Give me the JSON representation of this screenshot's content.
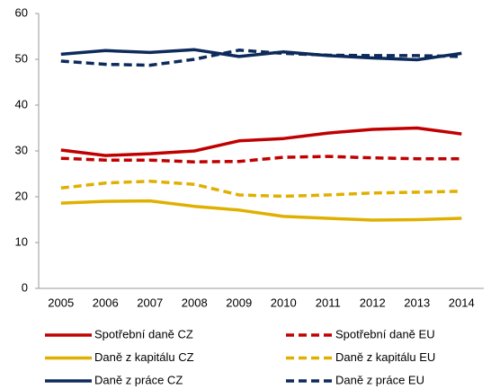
{
  "chart_data": {
    "type": "line",
    "categories": [
      "2005",
      "2006",
      "2007",
      "2008",
      "2009",
      "2010",
      "2011",
      "2012",
      "2013",
      "2014"
    ],
    "ylim": [
      0,
      60
    ],
    "yticks": [
      0,
      10,
      20,
      30,
      40,
      50,
      60
    ],
    "grid": false,
    "series": [
      {
        "name": "Spotřební daně CZ",
        "color": "#c00000",
        "dashed": false,
        "values": [
          30.2,
          29.0,
          29.4,
          30.0,
          32.2,
          32.7,
          33.9,
          34.7,
          35.0,
          33.7
        ]
      },
      {
        "name": "Spotřební daně EU",
        "color": "#c00000",
        "dashed": true,
        "values": [
          28.4,
          28.0,
          28.0,
          27.6,
          27.7,
          28.6,
          28.8,
          28.5,
          28.3,
          28.3
        ]
      },
      {
        "name": "Daně z kapitálu CZ",
        "color": "#e0b000",
        "dashed": false,
        "values": [
          18.6,
          19.0,
          19.1,
          17.9,
          17.1,
          15.7,
          15.3,
          14.9,
          15.0,
          15.3
        ]
      },
      {
        "name": "Daně z kapitálu EU",
        "color": "#e0b000",
        "dashed": true,
        "values": [
          21.9,
          23.0,
          23.4,
          22.7,
          20.4,
          20.1,
          20.4,
          20.8,
          21.0,
          21.2
        ]
      },
      {
        "name": "Daně z práce CZ",
        "color": "#0d2a5c",
        "dashed": false,
        "values": [
          51.1,
          51.9,
          51.5,
          52.1,
          50.6,
          51.6,
          50.8,
          50.3,
          49.9,
          51.3
        ]
      },
      {
        "name": "Daně z práce EU",
        "color": "#0d2a5c",
        "dashed": true,
        "values": [
          49.6,
          48.9,
          48.7,
          50.0,
          52.0,
          51.3,
          50.9,
          50.8,
          50.8,
          50.6
        ]
      }
    ]
  }
}
